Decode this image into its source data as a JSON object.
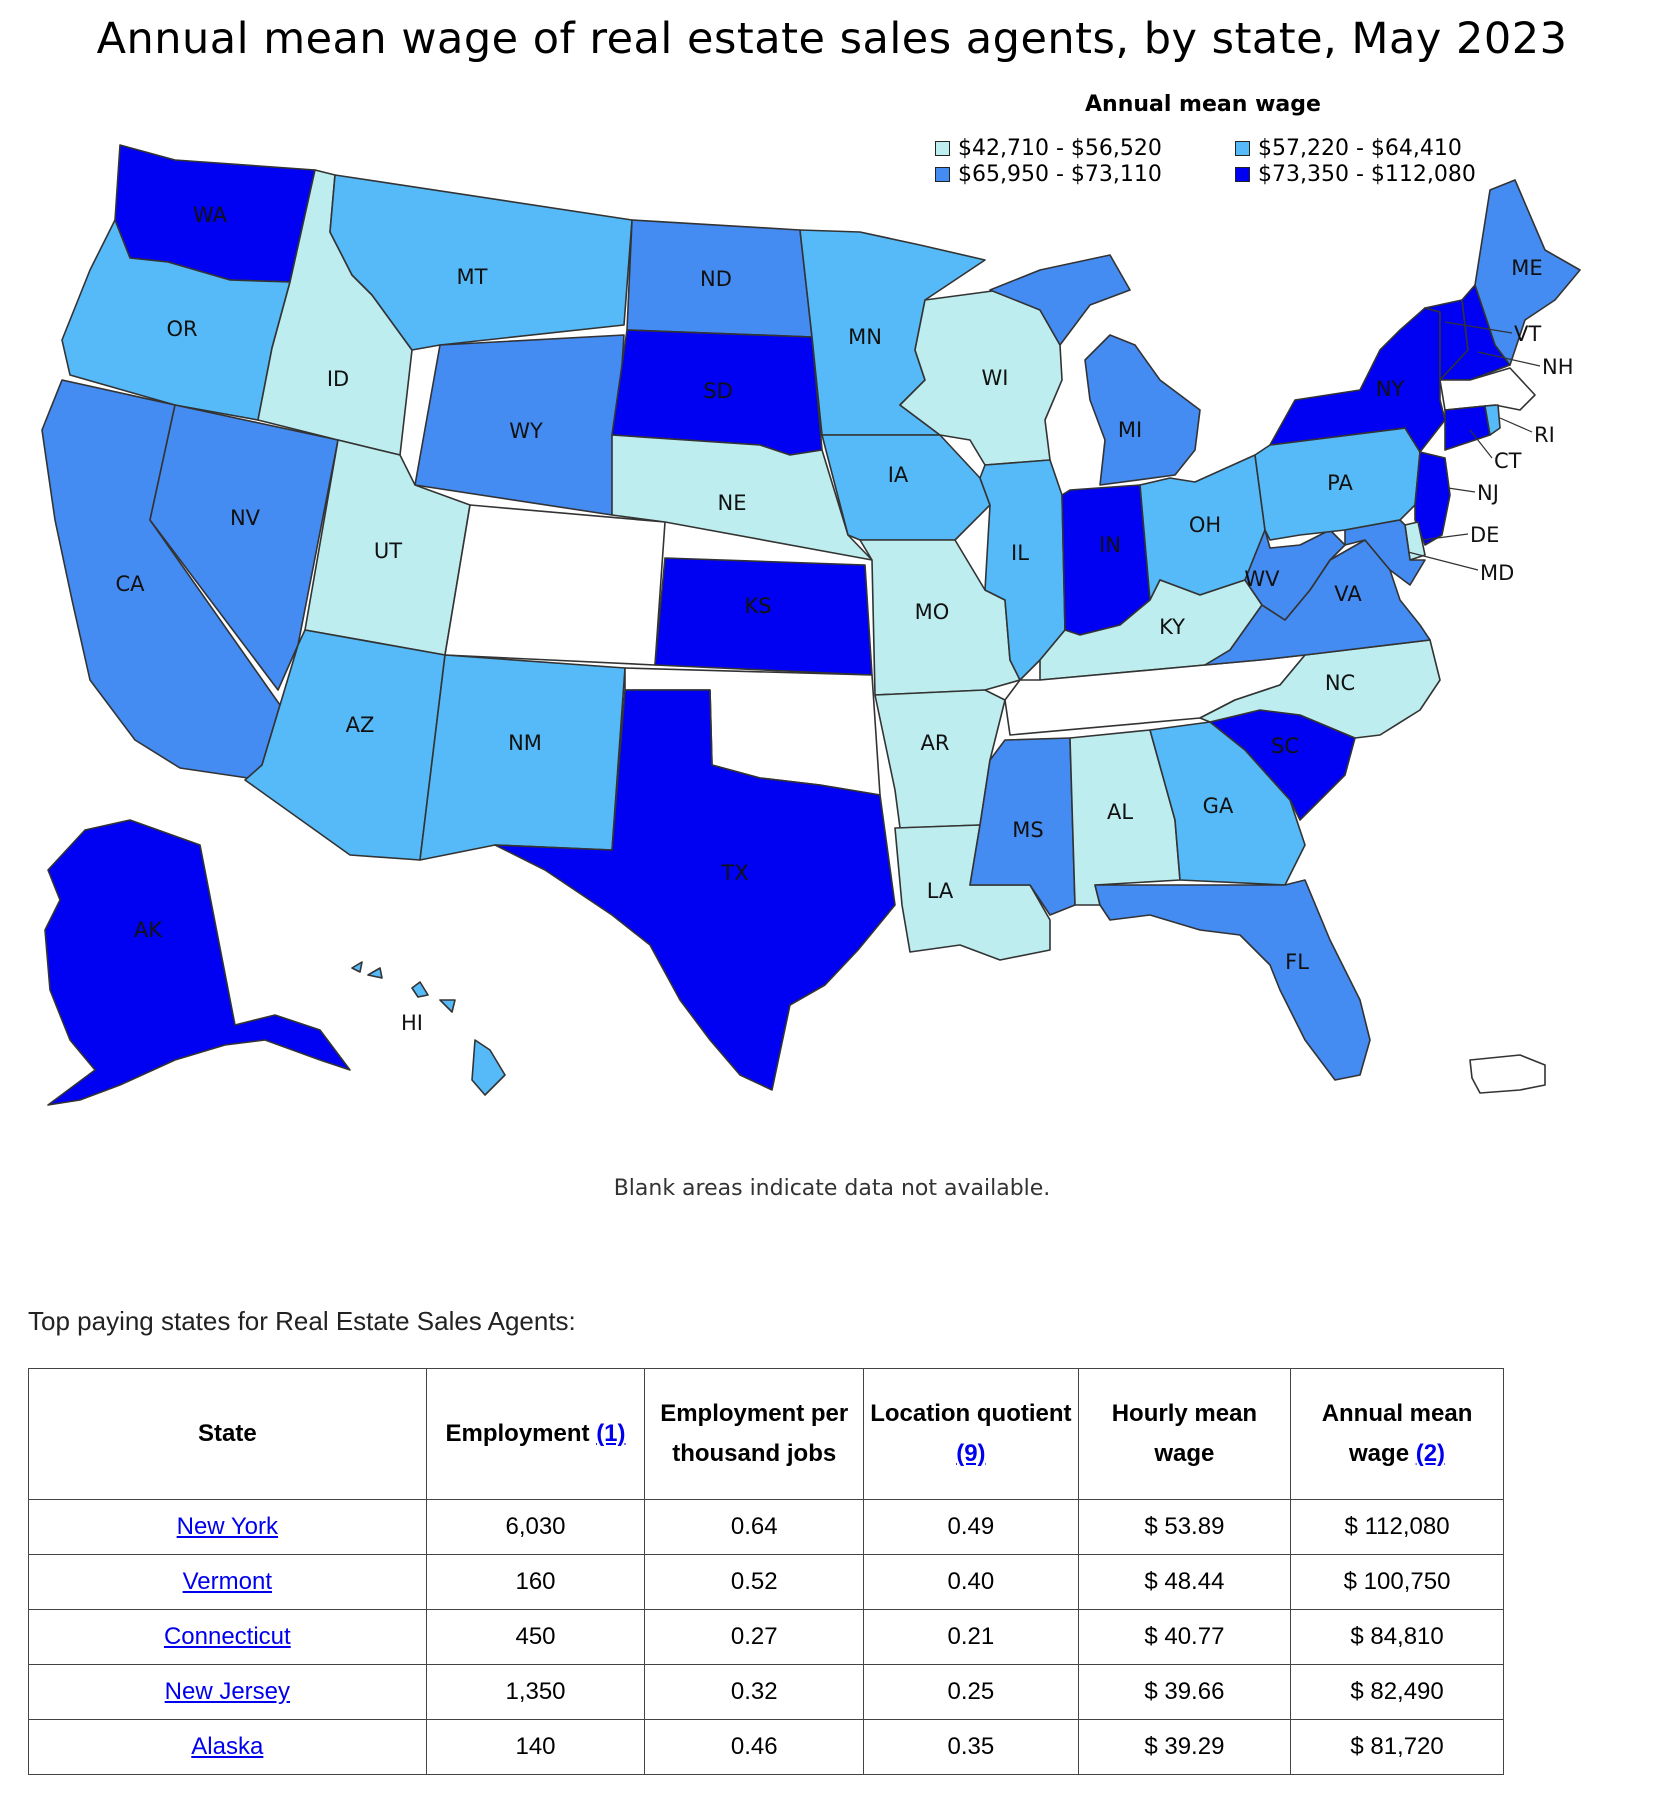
{
  "title": "Annual mean wage of real estate sales agents, by state, May 2023",
  "legend": {
    "title": "Annual mean wage",
    "items": [
      {
        "label": "$42,710 - $56,520",
        "color": "#bdedee"
      },
      {
        "label": "$57,220 - $64,410",
        "color": "#55baf7"
      },
      {
        "label": "$65,950 - $73,110",
        "color": "#448bf2"
      },
      {
        "label": "$73,350 - $112,080",
        "color": "#0000f2"
      }
    ]
  },
  "map": {
    "colors": {
      "c1": "#bdedee",
      "c2": "#55baf7",
      "c3": "#448bf2",
      "c4": "#0000f2",
      "na": "#ffffff"
    },
    "states": [
      {
        "abbr": "WA",
        "class": "c4"
      },
      {
        "abbr": "OR",
        "class": "c2"
      },
      {
        "abbr": "CA",
        "class": "c3"
      },
      {
        "abbr": "NV",
        "class": "c3"
      },
      {
        "abbr": "ID",
        "class": "c1"
      },
      {
        "abbr": "MT",
        "class": "c2"
      },
      {
        "abbr": "WY",
        "class": "c3"
      },
      {
        "abbr": "UT",
        "class": "c1"
      },
      {
        "abbr": "CO",
        "class": "na"
      },
      {
        "abbr": "AZ",
        "class": "c2"
      },
      {
        "abbr": "NM",
        "class": "c2"
      },
      {
        "abbr": "ND",
        "class": "c3"
      },
      {
        "abbr": "SD",
        "class": "c4"
      },
      {
        "abbr": "NE",
        "class": "c1"
      },
      {
        "abbr": "KS",
        "class": "c4"
      },
      {
        "abbr": "OK",
        "class": "na"
      },
      {
        "abbr": "TX",
        "class": "c4"
      },
      {
        "abbr": "MN",
        "class": "c2"
      },
      {
        "abbr": "IA",
        "class": "c2"
      },
      {
        "abbr": "MO",
        "class": "c1"
      },
      {
        "abbr": "AR",
        "class": "c1"
      },
      {
        "abbr": "LA",
        "class": "c1"
      },
      {
        "abbr": "WI",
        "class": "c1"
      },
      {
        "abbr": "IL",
        "class": "c2"
      },
      {
        "abbr": "MI",
        "class": "c3"
      },
      {
        "abbr": "IN",
        "class": "c4"
      },
      {
        "abbr": "OH",
        "class": "c2"
      },
      {
        "abbr": "KY",
        "class": "c1"
      },
      {
        "abbr": "TN",
        "class": "na"
      },
      {
        "abbr": "MS",
        "class": "c3"
      },
      {
        "abbr": "AL",
        "class": "c1"
      },
      {
        "abbr": "GA",
        "class": "c2"
      },
      {
        "abbr": "FL",
        "class": "c3"
      },
      {
        "abbr": "SC",
        "class": "c4"
      },
      {
        "abbr": "NC",
        "class": "c1"
      },
      {
        "abbr": "VA",
        "class": "c3"
      },
      {
        "abbr": "WV",
        "class": "c3"
      },
      {
        "abbr": "PA",
        "class": "c2"
      },
      {
        "abbr": "NY",
        "class": "c4"
      },
      {
        "abbr": "VT",
        "class": "c4"
      },
      {
        "abbr": "NH",
        "class": "c4"
      },
      {
        "abbr": "ME",
        "class": "c3"
      },
      {
        "abbr": "MA",
        "class": "na"
      },
      {
        "abbr": "RI",
        "class": "c2"
      },
      {
        "abbr": "CT",
        "class": "c4"
      },
      {
        "abbr": "NJ",
        "class": "c4"
      },
      {
        "abbr": "DE",
        "class": "c1"
      },
      {
        "abbr": "MD",
        "class": "c3"
      },
      {
        "abbr": "AK",
        "class": "c4"
      },
      {
        "abbr": "HI",
        "class": "c2"
      },
      {
        "abbr": "PR",
        "class": "na"
      }
    ],
    "note": "Blank areas indicate data not available."
  },
  "table": {
    "caption": "Top paying states for Real Estate Sales Agents:",
    "headers": {
      "state": "State",
      "employment": "Employment",
      "employment_ref": "(1)",
      "ept": "Employment per thousand jobs",
      "lq": "Location quotient",
      "lq_ref": "(9)",
      "hmw": "Hourly mean wage",
      "amw": "Annual mean wage",
      "amw_ref": "(2)"
    },
    "rows": [
      {
        "state": "New York",
        "employment": "6,030",
        "ept": "0.64",
        "lq": "0.49",
        "hmw": "$ 53.89",
        "amw": "$ 112,080"
      },
      {
        "state": "Vermont",
        "employment": "160",
        "ept": "0.52",
        "lq": "0.40",
        "hmw": "$ 48.44",
        "amw": "$ 100,750"
      },
      {
        "state": "Connecticut",
        "employment": "450",
        "ept": "0.27",
        "lq": "0.21",
        "hmw": "$ 40.77",
        "amw": "$ 84,810"
      },
      {
        "state": "New Jersey",
        "employment": "1,350",
        "ept": "0.32",
        "lq": "0.25",
        "hmw": "$ 39.66",
        "amw": "$ 82,490"
      },
      {
        "state": "Alaska",
        "employment": "140",
        "ept": "0.46",
        "lq": "0.35",
        "hmw": "$ 39.29",
        "amw": "$ 81,720"
      }
    ]
  }
}
